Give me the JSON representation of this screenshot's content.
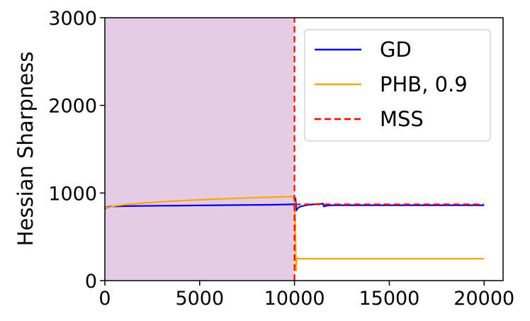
{
  "chart_data": {
    "type": "line",
    "title": "",
    "xlabel": "",
    "ylabel": "Hessian Sharpness",
    "xlim": [
      0,
      21000
    ],
    "ylim": [
      0,
      3000
    ],
    "xticks": [
      0,
      5000,
      10000,
      15000,
      20000
    ],
    "xtick_labels": [
      "0",
      "5000",
      "10000",
      "15000",
      "20000"
    ],
    "yticks": [
      0,
      1000,
      2000,
      3000
    ],
    "ytick_labels": [
      "0",
      "1000",
      "2000",
      "3000"
    ],
    "grid": false,
    "legend_position": "top-right",
    "shaded_region": {
      "x0": 0,
      "x1": 10000,
      "color": "#e5cce5"
    },
    "series": [
      {
        "name": "GD",
        "color": "#0000ee",
        "style": "solid",
        "x": [
          0,
          100,
          300,
          1000,
          3000,
          5000,
          7000,
          9000,
          9950,
          10000,
          10050,
          10100,
          10150,
          10250,
          10400,
          10600,
          10800,
          11000,
          11200,
          11400,
          11500,
          11550,
          11700,
          12000,
          14000,
          16000,
          18000,
          20000
        ],
        "y": [
          820,
          838,
          845,
          850,
          855,
          858,
          862,
          866,
          870,
          870,
          940,
          800,
          820,
          840,
          850,
          860,
          865,
          870,
          873,
          876,
          878,
          845,
          855,
          860,
          860,
          860,
          860,
          860
        ]
      },
      {
        "name": "PHB, 0.9",
        "color": "#ffa500",
        "style": "solid",
        "x": [
          0,
          100,
          300,
          600,
          1000,
          2000,
          3000,
          4000,
          5000,
          6000,
          7000,
          8000,
          9000,
          9950,
          10020,
          10050,
          10080,
          10110,
          10150,
          10300,
          11000,
          13000,
          16000,
          20000
        ],
        "y": [
          850,
          830,
          840,
          855,
          865,
          885,
          900,
          912,
          922,
          932,
          940,
          947,
          953,
          960,
          900,
          550,
          110,
          240,
          255,
          250,
          250,
          250,
          250,
          250
        ]
      },
      {
        "name": "MSS",
        "color": "#ff0000",
        "style": "dashed",
        "segments": [
          {
            "x": [
              10000,
              10000
            ],
            "y": [
              0,
              3000
            ]
          },
          {
            "x": [
              10000,
              20000
            ],
            "y": [
              870,
              870
            ]
          }
        ]
      }
    ]
  }
}
